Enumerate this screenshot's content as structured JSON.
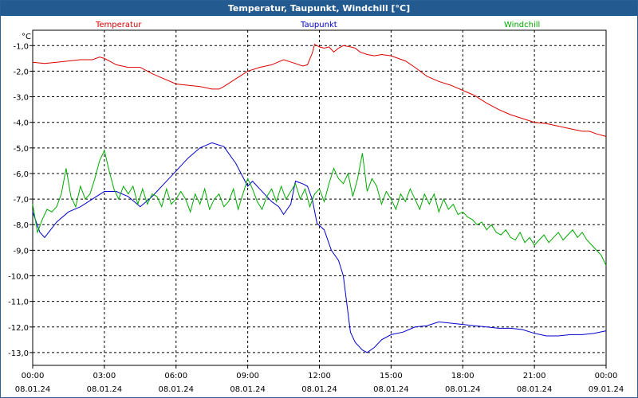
{
  "window": {
    "title": "Temperatur, Taupunkt, Windchill [°C]"
  },
  "chart_data": {
    "type": "line",
    "title": "Temperatur, Taupunkt, Windchill [°C]",
    "ylabel": "°C",
    "xlabel": "",
    "ylim": [
      -13.5,
      -0.4
    ],
    "y_ticks": [
      -1,
      -2,
      -3,
      -4,
      -5,
      -6,
      -7,
      -8,
      -9,
      -10,
      -11,
      -12,
      -13
    ],
    "y_tick_labels": [
      "-1,0",
      "-2,0",
      "-3,0",
      "-4,0",
      "-5,0",
      "-6,0",
      "-7,0",
      "-8,0",
      "-9,0",
      "-10,0",
      "-11,0",
      "-12,0",
      "-13,0"
    ],
    "xlim": [
      0,
      24
    ],
    "x_ticks": [
      0,
      3,
      6,
      9,
      12,
      15,
      18,
      21,
      24
    ],
    "x_tick_time": [
      "00:00",
      "03:00",
      "06:00",
      "09:00",
      "12:00",
      "15:00",
      "18:00",
      "21:00",
      "00:00"
    ],
    "x_tick_date": [
      "08.01.24",
      "08.01.24",
      "08.01.24",
      "08.01.24",
      "08.01.24",
      "08.01.24",
      "08.01.24",
      "08.01.24",
      "09.01.24"
    ],
    "grid": true,
    "series": [
      {
        "name": "Temperatur",
        "color": "#dd0000",
        "x": [
          0,
          0.5,
          1,
          1.5,
          2,
          2.5,
          2.8,
          3,
          3.3,
          3.5,
          4,
          4.5,
          5,
          5.5,
          6,
          6.5,
          7,
          7.5,
          7.8,
          8,
          8.5,
          9,
          9.5,
          10,
          10.5,
          11,
          11.3,
          11.5,
          11.7,
          11.8,
          12,
          12.2,
          12.4,
          12.6,
          12.8,
          13,
          13.3,
          13.5,
          13.7,
          14,
          14.3,
          14.6,
          15,
          15.3,
          15.6,
          16,
          16.5,
          17,
          17.5,
          18,
          18.5,
          19,
          19.5,
          20,
          20.5,
          21,
          21.5,
          22,
          22.5,
          23,
          23.3,
          23.6,
          24
        ],
        "values": [
          -1.65,
          -1.7,
          -1.65,
          -1.6,
          -1.55,
          -1.55,
          -1.45,
          -1.5,
          -1.65,
          -1.75,
          -1.85,
          -1.85,
          -2.1,
          -2.3,
          -2.5,
          -2.55,
          -2.6,
          -2.7,
          -2.7,
          -2.6,
          -2.3,
          -2.0,
          -1.85,
          -1.75,
          -1.55,
          -1.7,
          -1.8,
          -1.75,
          -1.3,
          -0.95,
          -1.05,
          -1.1,
          -1.05,
          -1.25,
          -1.1,
          -1.0,
          -1.05,
          -1.1,
          -1.25,
          -1.35,
          -1.4,
          -1.35,
          -1.4,
          -1.5,
          -1.6,
          -1.85,
          -2.2,
          -2.4,
          -2.55,
          -2.75,
          -2.95,
          -3.25,
          -3.5,
          -3.7,
          -3.85,
          -4.0,
          -4.05,
          -4.15,
          -4.25,
          -4.35,
          -4.35,
          -4.45,
          -4.55
        ]
      },
      {
        "name": "Taupunkt",
        "color": "#0000cc",
        "x": [
          0,
          0.3,
          0.5,
          1,
          1.5,
          2,
          2.5,
          3,
          3.5,
          4,
          4.5,
          5,
          5.5,
          6,
          6.5,
          7,
          7.5,
          8,
          8.5,
          9,
          9.2,
          9.5,
          10,
          10.3,
          10.5,
          10.8,
          11,
          11.3,
          11.5,
          11.7,
          11.9,
          12.2,
          12.5,
          12.8,
          13,
          13.3,
          13.5,
          13.8,
          14,
          14.3,
          14.6,
          15,
          15.5,
          16,
          16.5,
          17,
          17.5,
          18,
          18.5,
          19,
          19.5,
          20,
          20.5,
          21,
          21.5,
          22,
          22.5,
          23,
          23.5,
          24
        ],
        "values": [
          -7.5,
          -8.3,
          -8.5,
          -7.9,
          -7.5,
          -7.3,
          -7.0,
          -6.7,
          -6.7,
          -6.9,
          -7.3,
          -6.9,
          -6.4,
          -5.9,
          -5.4,
          -5.0,
          -4.8,
          -4.95,
          -5.6,
          -6.5,
          -6.3,
          -6.6,
          -7.1,
          -7.3,
          -7.6,
          -7.2,
          -6.3,
          -6.4,
          -6.5,
          -7.0,
          -7.95,
          -8.2,
          -9.0,
          -9.4,
          -10.0,
          -12.2,
          -12.6,
          -12.9,
          -13.0,
          -12.8,
          -12.5,
          -12.3,
          -12.2,
          -12.0,
          -11.95,
          -11.8,
          -11.85,
          -11.9,
          -11.95,
          -12.0,
          -12.05,
          -12.05,
          -12.1,
          -12.25,
          -12.35,
          -12.35,
          -12.3,
          -12.3,
          -12.25,
          -12.15
        ]
      },
      {
        "name": "Windchill",
        "color": "#00aa00",
        "x": [
          0,
          0.2,
          0.4,
          0.6,
          0.8,
          1,
          1.2,
          1.4,
          1.6,
          1.8,
          2,
          2.2,
          2.4,
          2.6,
          2.8,
          3,
          3.2,
          3.4,
          3.6,
          3.8,
          4,
          4.2,
          4.4,
          4.6,
          4.8,
          5,
          5.2,
          5.4,
          5.6,
          5.8,
          6,
          6.2,
          6.4,
          6.6,
          6.8,
          7,
          7.2,
          7.4,
          7.6,
          7.8,
          8,
          8.2,
          8.4,
          8.6,
          8.8,
          9,
          9.2,
          9.4,
          9.6,
          9.8,
          10,
          10.2,
          10.4,
          10.6,
          10.8,
          11,
          11.2,
          11.4,
          11.6,
          11.8,
          12,
          12.2,
          12.4,
          12.6,
          12.8,
          13,
          13.2,
          13.4,
          13.6,
          13.8,
          14,
          14.2,
          14.4,
          14.6,
          14.8,
          15,
          15.2,
          15.4,
          15.6,
          15.8,
          16,
          16.2,
          16.4,
          16.6,
          16.8,
          17,
          17.2,
          17.4,
          17.6,
          17.8,
          18,
          18.2,
          18.4,
          18.6,
          18.8,
          19,
          19.2,
          19.4,
          19.6,
          19.8,
          20,
          20.2,
          20.4,
          20.6,
          20.8,
          21,
          21.2,
          21.4,
          21.6,
          21.8,
          22,
          22.2,
          22.4,
          22.6,
          22.8,
          23,
          23.2,
          23.4,
          23.6,
          23.8,
          24
        ],
        "values": [
          -7.2,
          -8.3,
          -7.8,
          -7.4,
          -7.5,
          -7.3,
          -6.8,
          -5.8,
          -6.9,
          -7.3,
          -6.5,
          -7.0,
          -6.8,
          -6.2,
          -5.5,
          -5.1,
          -5.9,
          -6.6,
          -7.0,
          -6.5,
          -6.8,
          -6.5,
          -7.2,
          -6.6,
          -7.2,
          -6.8,
          -6.9,
          -7.3,
          -6.6,
          -7.2,
          -7.0,
          -6.7,
          -7.0,
          -7.5,
          -6.8,
          -7.2,
          -6.6,
          -7.4,
          -7.0,
          -6.8,
          -7.3,
          -7.1,
          -6.6,
          -7.4,
          -6.8,
          -6.2,
          -6.6,
          -7.1,
          -7.4,
          -6.9,
          -6.6,
          -7.1,
          -6.5,
          -7.0,
          -6.7,
          -6.4,
          -7.0,
          -6.6,
          -7.3,
          -6.8,
          -6.6,
          -7.1,
          -6.4,
          -5.8,
          -6.2,
          -6.4,
          -6.0,
          -6.9,
          -6.2,
          -5.2,
          -6.7,
          -6.2,
          -6.5,
          -7.2,
          -6.7,
          -7.0,
          -7.4,
          -6.8,
          -7.1,
          -6.6,
          -7.0,
          -7.4,
          -6.8,
          -7.2,
          -6.8,
          -7.5,
          -7.0,
          -7.4,
          -7.2,
          -7.6,
          -7.5,
          -7.7,
          -7.8,
          -8.0,
          -7.9,
          -8.2,
          -8.0,
          -8.3,
          -8.4,
          -8.2,
          -8.5,
          -8.6,
          -8.3,
          -8.7,
          -8.5,
          -8.8,
          -8.6,
          -8.4,
          -8.7,
          -8.5,
          -8.3,
          -8.6,
          -8.4,
          -8.2,
          -8.5,
          -8.3,
          -8.6,
          -8.8,
          -9.0,
          -9.2,
          -9.6
        ]
      }
    ]
  }
}
